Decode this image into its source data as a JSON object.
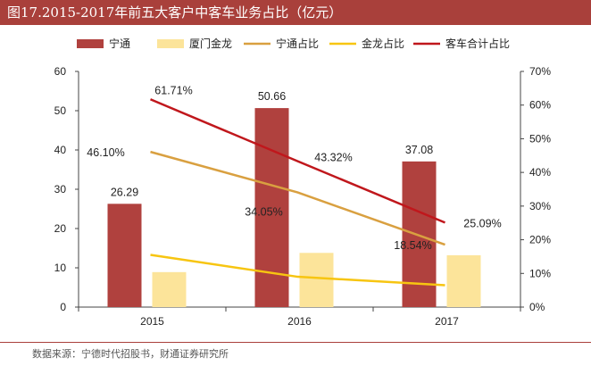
{
  "figure": {
    "title": "图17.2015-2017年前五大客户中客车业务占比（亿元）",
    "source": "数据来源：宁德时代招股书，财通证券研究所"
  },
  "colors": {
    "title_bg": "#a9403b",
    "ningde_bar": "#b0413e",
    "xiamen_bar": "#fce49a",
    "ningde_line": "#d9a040",
    "jinlong_line": "#f7c511",
    "bus_total_line": "#c0171c"
  },
  "chart_data": {
    "type": "bar",
    "categories": [
      "2015",
      "2016",
      "2017"
    ],
    "series": [
      {
        "name": "宁通",
        "kind": "bar",
        "axis": "left",
        "values": [
          26.29,
          50.66,
          37.08
        ],
        "labels": [
          "26.29",
          "50.66",
          "37.08"
        ]
      },
      {
        "name": "厦门金龙",
        "kind": "bar",
        "axis": "left",
        "values": [
          8.9,
          13.8,
          13.2
        ],
        "labels": [
          "",
          "",
          ""
        ]
      },
      {
        "name": "宁通占比",
        "kind": "line",
        "axis": "right",
        "values": [
          46.1,
          34.05,
          18.54
        ],
        "labels": [
          "46.10%",
          "34.05%",
          "18.54%"
        ]
      },
      {
        "name": "金龙占比",
        "kind": "line",
        "axis": "right",
        "values": [
          15.5,
          9.0,
          6.5
        ],
        "labels": [
          "",
          "",
          ""
        ]
      },
      {
        "name": "客车合计占比",
        "kind": "line",
        "axis": "right",
        "values": [
          61.71,
          43.32,
          25.09
        ],
        "labels": [
          "61.71%",
          "43.32%",
          "25.09%"
        ]
      }
    ],
    "left_axis": {
      "range": [
        0,
        60
      ],
      "ticks": [
        "0",
        "10",
        "20",
        "30",
        "40",
        "50",
        "60"
      ]
    },
    "right_axis": {
      "range": [
        0,
        70
      ],
      "ticks": [
        "0%",
        "10%",
        "20%",
        "30%",
        "40%",
        "50%",
        "60%",
        "70%"
      ]
    },
    "grid": false,
    "legend_position": "top"
  }
}
